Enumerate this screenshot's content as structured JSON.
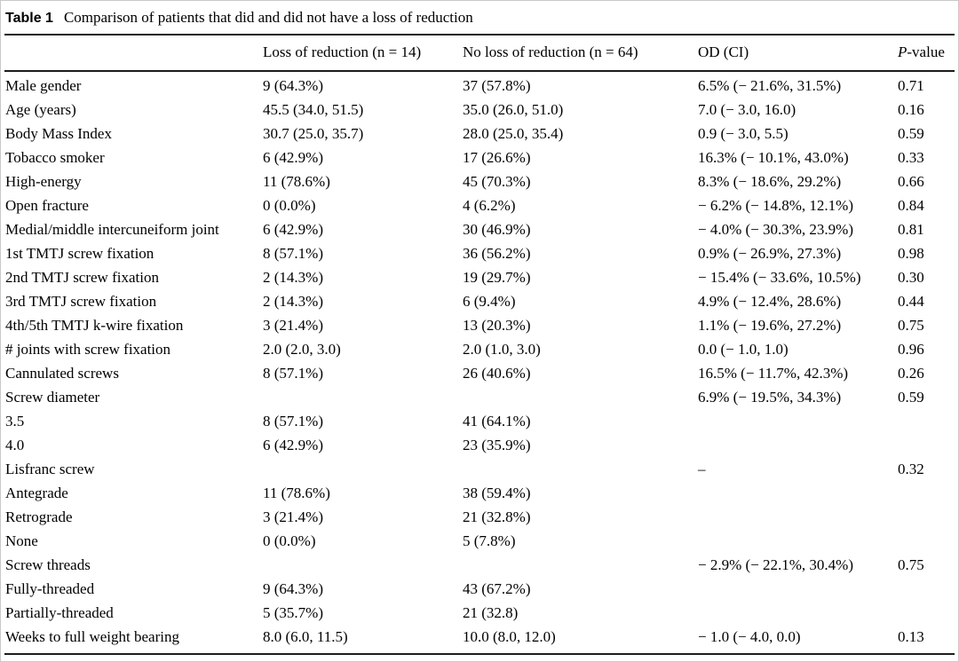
{
  "caption": {
    "label": "Table 1",
    "text": "Comparison of patients that did and did not have a loss of reduction"
  },
  "table": {
    "column_headers": {
      "row_label": "",
      "loss": "Loss of reduction (n = 14)",
      "no_loss": "No loss of reduction (n = 64)",
      "od_ci": "OD (CI)",
      "p_value_italic": "P",
      "p_value_rest": "-value"
    },
    "rows": [
      {
        "label": "Male gender",
        "indent": false,
        "loss": "9 (64.3%)",
        "no_loss": "37 (57.8%)",
        "od_ci": "6.5% (− 21.6%, 31.5%)",
        "p": "0.71"
      },
      {
        "label": "Age (years)",
        "indent": false,
        "loss": "45.5 (34.0, 51.5)",
        "no_loss": "35.0 (26.0, 51.0)",
        "od_ci": "7.0 (− 3.0, 16.0)",
        "p": "0.16"
      },
      {
        "label": "Body Mass Index",
        "indent": false,
        "loss": "30.7 (25.0, 35.7)",
        "no_loss": "28.0 (25.0, 35.4)",
        "od_ci": "0.9 (− 3.0, 5.5)",
        "p": "0.59"
      },
      {
        "label": "Tobacco smoker",
        "indent": false,
        "loss": "6 (42.9%)",
        "no_loss": "17 (26.6%)",
        "od_ci": "16.3% (− 10.1%, 43.0%)",
        "p": "0.33"
      },
      {
        "label": "High-energy",
        "indent": false,
        "loss": "11 (78.6%)",
        "no_loss": "45 (70.3%)",
        "od_ci": "8.3% (− 18.6%, 29.2%)",
        "p": "0.66"
      },
      {
        "label": "Open fracture",
        "indent": false,
        "loss": "0 (0.0%)",
        "no_loss": "4 (6.2%)",
        "od_ci": "− 6.2% (− 14.8%, 12.1%)",
        "p": "0.84"
      },
      {
        "label": "Medial/middle intercuneiform joint",
        "indent": false,
        "loss": "6 (42.9%)",
        "no_loss": "30 (46.9%)",
        "od_ci": "− 4.0% (− 30.3%, 23.9%)",
        "p": "0.81"
      },
      {
        "label": "1st TMTJ screw fixation",
        "indent": false,
        "loss": "8 (57.1%)",
        "no_loss": "36 (56.2%)",
        "od_ci": "0.9% (− 26.9%, 27.3%)",
        "p": "0.98"
      },
      {
        "label": "2nd TMTJ screw fixation",
        "indent": false,
        "loss": "2 (14.3%)",
        "no_loss": "19 (29.7%)",
        "od_ci": "− 15.4% (− 33.6%, 10.5%)",
        "p": "0.30"
      },
      {
        "label": "3rd TMTJ screw fixation",
        "indent": false,
        "loss": "2 (14.3%)",
        "no_loss": "6 (9.4%)",
        "od_ci": "4.9% (− 12.4%, 28.6%)",
        "p": "0.44"
      },
      {
        "label": "4th/5th TMTJ k-wire fixation",
        "indent": false,
        "loss": "3 (21.4%)",
        "no_loss": "13 (20.3%)",
        "od_ci": "1.1% (− 19.6%, 27.2%)",
        "p": "0.75"
      },
      {
        "label": "# joints with screw fixation",
        "indent": false,
        "loss": "2.0 (2.0, 3.0)",
        "no_loss": "2.0 (1.0, 3.0)",
        "od_ci": "0.0 (− 1.0, 1.0)",
        "p": "0.96"
      },
      {
        "label": "Cannulated screws",
        "indent": false,
        "loss": "8 (57.1%)",
        "no_loss": "26 (40.6%)",
        "od_ci": "16.5% (− 11.7%, 42.3%)",
        "p": "0.26"
      },
      {
        "label": "Screw diameter",
        "indent": false,
        "loss": "",
        "no_loss": "",
        "od_ci": "6.9% (− 19.5%, 34.3%)",
        "p": "0.59"
      },
      {
        "label": "3.5",
        "indent": true,
        "loss": "8 (57.1%)",
        "no_loss": "41 (64.1%)",
        "od_ci": "",
        "p": ""
      },
      {
        "label": "4.0",
        "indent": true,
        "loss": "6 (42.9%)",
        "no_loss": "23 (35.9%)",
        "od_ci": "",
        "p": ""
      },
      {
        "label": "Lisfranc screw",
        "indent": false,
        "loss": "",
        "no_loss": "",
        "od_ci": "–",
        "p": "0.32"
      },
      {
        "label": "Antegrade",
        "indent": true,
        "loss": "11 (78.6%)",
        "no_loss": "38 (59.4%)",
        "od_ci": "",
        "p": ""
      },
      {
        "label": "Retrograde",
        "indent": true,
        "loss": "3 (21.4%)",
        "no_loss": "21 (32.8%)",
        "od_ci": "",
        "p": ""
      },
      {
        "label": "None",
        "indent": true,
        "loss": "0 (0.0%)",
        "no_loss": "5 (7.8%)",
        "od_ci": "",
        "p": ""
      },
      {
        "label": "Screw threads",
        "indent": false,
        "loss": "",
        "no_loss": "",
        "od_ci": "− 2.9% (− 22.1%, 30.4%)",
        "p": "0.75"
      },
      {
        "label": "Fully-threaded",
        "indent": true,
        "loss": "9 (64.3%)",
        "no_loss": "43 (67.2%)",
        "od_ci": "",
        "p": ""
      },
      {
        "label": "Partially-threaded",
        "indent": true,
        "loss": "5 (35.7%)",
        "no_loss": "21 (32.8)",
        "od_ci": "",
        "p": ""
      },
      {
        "label": "Weeks to full weight bearing",
        "indent": false,
        "loss": "8.0 (6.0, 11.5)",
        "no_loss": "10.0 (8.0, 12.0)",
        "od_ci": "− 1.0 (− 4.0, 0.0)",
        "p": "0.13"
      }
    ]
  },
  "colors": {
    "text": "#000000",
    "rule": "#1c1c1c",
    "frame": "#c9c9c9",
    "background": "#ffffff"
  }
}
